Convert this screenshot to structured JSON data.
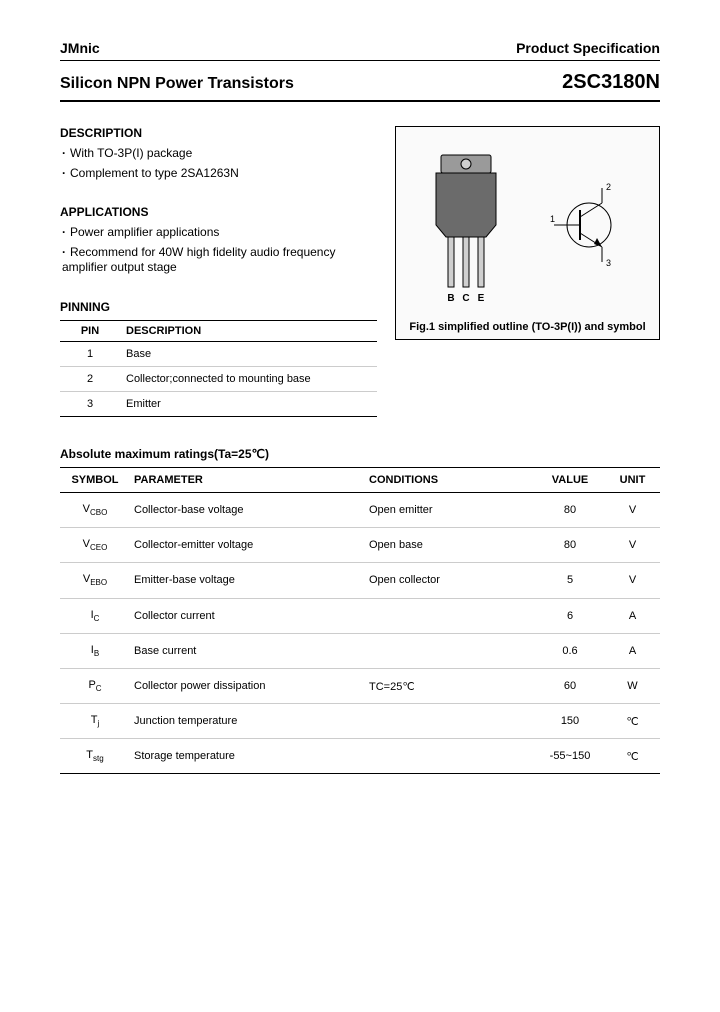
{
  "header": {
    "company": "JMnic",
    "spec_label": "Product Specification"
  },
  "title": {
    "product": "Silicon NPN Power Transistors",
    "part": "2SC3180N"
  },
  "description": {
    "heading": "DESCRIPTION",
    "items": [
      "With TO-3P(I) package",
      "Complement to type 2SA1263N"
    ]
  },
  "applications": {
    "heading": "APPLICATIONS",
    "items": [
      "Power amplifier applications",
      "Recommend for 40W high fidelity audio frequency amplifier output stage"
    ]
  },
  "pinning": {
    "heading": "PINNING",
    "col_pin": "PIN",
    "col_desc": "DESCRIPTION",
    "rows": [
      {
        "pin": "1",
        "desc": "Base"
      },
      {
        "pin": "2",
        "desc": "Collector;connected to mounting base"
      },
      {
        "pin": "3",
        "desc": "Emitter"
      }
    ]
  },
  "figure": {
    "pins": {
      "b": "B",
      "c": "C",
      "e": "E"
    },
    "sym": {
      "p1": "1",
      "p2": "2",
      "p3": "3"
    },
    "caption": "Fig.1 simplified outline (TO-3P(I)) and symbol"
  },
  "ratings": {
    "heading": "Absolute maximum ratings(Ta=25℃)",
    "cols": {
      "symbol": "SYMBOL",
      "param": "PARAMETER",
      "cond": "CONDITIONS",
      "value": "VALUE",
      "unit": "UNIT"
    },
    "rows": [
      {
        "sym": "V",
        "sub": "CBO",
        "param": "Collector-base voltage",
        "cond": "Open emitter",
        "value": "80",
        "unit": "V"
      },
      {
        "sym": "V",
        "sub": "CEO",
        "param": "Collector-emitter voltage",
        "cond": "Open base",
        "value": "80",
        "unit": "V"
      },
      {
        "sym": "V",
        "sub": "EBO",
        "param": "Emitter-base voltage",
        "cond": "Open collector",
        "value": "5",
        "unit": "V"
      },
      {
        "sym": "I",
        "sub": "C",
        "param": "Collector current",
        "cond": "",
        "value": "6",
        "unit": "A"
      },
      {
        "sym": "I",
        "sub": "B",
        "param": "Base current",
        "cond": "",
        "value": "0.6",
        "unit": "A"
      },
      {
        "sym": "P",
        "sub": "C",
        "param": "Collector power dissipation",
        "cond": "TC=25℃",
        "value": "60",
        "unit": "W"
      },
      {
        "sym": "T",
        "sub": "j",
        "param": "Junction temperature",
        "cond": "",
        "value": "150",
        "unit": "℃"
      },
      {
        "sym": "T",
        "sub": "stg",
        "param": "Storage temperature",
        "cond": "",
        "value": "-55~150",
        "unit": "℃"
      }
    ]
  },
  "colors": {
    "pkg_body": "#6b6b6b",
    "pkg_tab": "#9a9a9a",
    "lead": "#cfcfcf",
    "stroke": "#000000"
  }
}
